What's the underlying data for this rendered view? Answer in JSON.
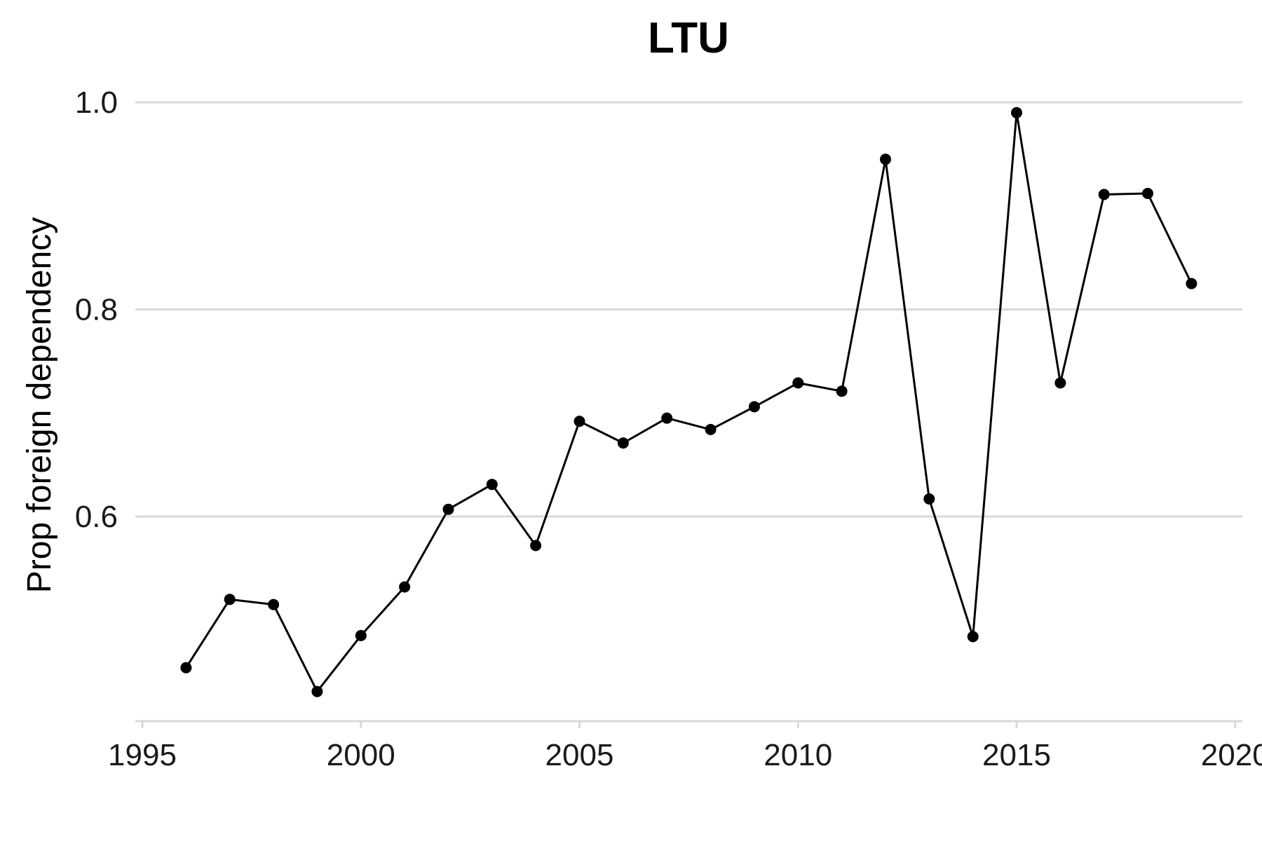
{
  "chart_data": {
    "type": "line",
    "title": "LTU",
    "xlabel": "",
    "ylabel": "Prop foreign dependency",
    "xlim": [
      1995,
      2020
    ],
    "ylim": [
      0.4,
      1.0
    ],
    "xticks": [
      "1995",
      "2000",
      "2005",
      "2010",
      "2015",
      "2020"
    ],
    "yticks": [
      "0.6",
      "0.8",
      "1.0"
    ],
    "grid": "horizontal",
    "line_color": "#000000",
    "grid_color": "#d9d9d9",
    "x": [
      1996,
      1997,
      1998,
      1999,
      2000,
      2001,
      2002,
      2003,
      2004,
      2005,
      2006,
      2007,
      2008,
      2009,
      2010,
      2011,
      2012,
      2013,
      2014,
      2015,
      2016,
      2017,
      2018,
      2019
    ],
    "values": [
      0.454,
      0.52,
      0.515,
      0.431,
      0.485,
      0.532,
      0.607,
      0.631,
      0.572,
      0.692,
      0.671,
      0.695,
      0.684,
      0.706,
      0.729,
      0.721,
      0.945,
      0.617,
      0.484,
      0.99,
      0.729,
      0.911,
      0.912,
      0.825
    ]
  }
}
